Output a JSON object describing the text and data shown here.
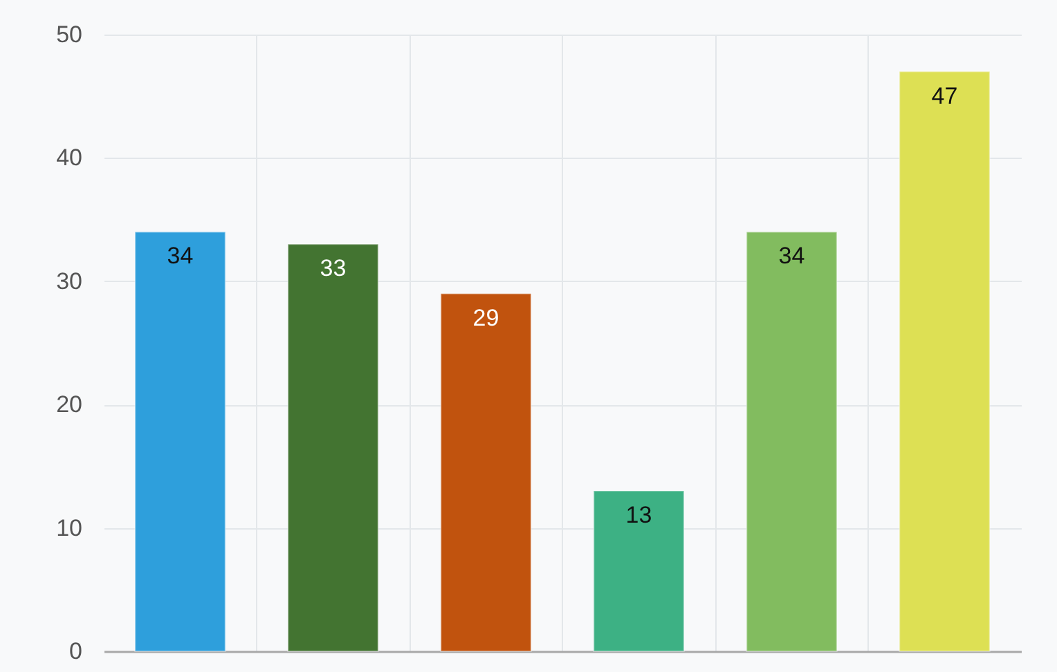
{
  "chart_data": {
    "type": "bar",
    "categories": [
      null,
      null,
      null,
      null,
      null,
      null
    ],
    "values": [
      34,
      33,
      29,
      13,
      34,
      47
    ],
    "colors": [
      "#2e9fdc",
      "#437431",
      "#c1530e",
      "#3db184",
      "#82bc5f",
      "#dde054"
    ],
    "ylim": [
      0,
      50
    ],
    "yticks": [
      0,
      10,
      20,
      30,
      40,
      50
    ],
    "grid": true,
    "data_labels": true,
    "tick_labels": "y"
  }
}
